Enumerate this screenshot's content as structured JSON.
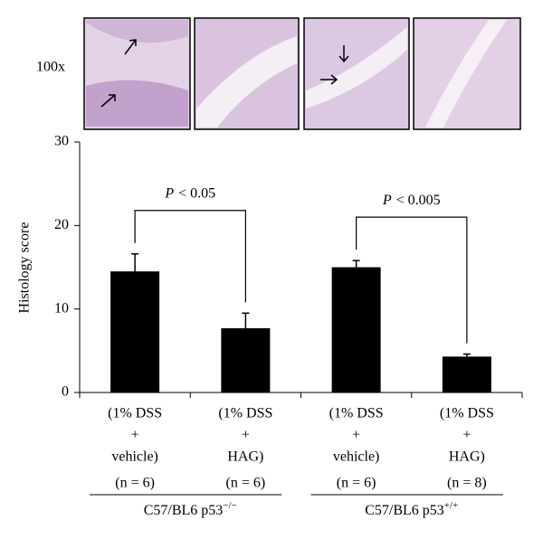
{
  "chart_data": {
    "type": "bar",
    "image_label": "100x",
    "ylabel": "Histology score",
    "categories": [
      [
        "(1% DSS",
        "+",
        "vehicle)"
      ],
      [
        "(1% DSS",
        "+",
        "HAG)"
      ],
      [
        "(1% DSS",
        "+",
        "vehicle)"
      ],
      [
        "(1% DSS",
        "+",
        "HAG)"
      ]
    ],
    "values": [
      14.5,
      7.7,
      15.0,
      4.3
    ],
    "errors": [
      2.1,
      1.8,
      0.8,
      0.3
    ],
    "color": "#000000",
    "n_labels": [
      "(n = 6)",
      "(n = 6)",
      "(n = 6)",
      "(n = 8)"
    ],
    "groups": [
      {
        "name": "C57/BL6 p53",
        "superscript": "−/−"
      },
      {
        "name": "C57/BL6 p53",
        "superscript": "+/+"
      }
    ],
    "annotations": [
      {
        "symbol": "P",
        "text": "< 0.05"
      },
      {
        "symbol": "P",
        "text": "< 0.005"
      }
    ],
    "ylim": [
      0,
      30
    ],
    "yticks": [
      0,
      10,
      20,
      30
    ]
  }
}
